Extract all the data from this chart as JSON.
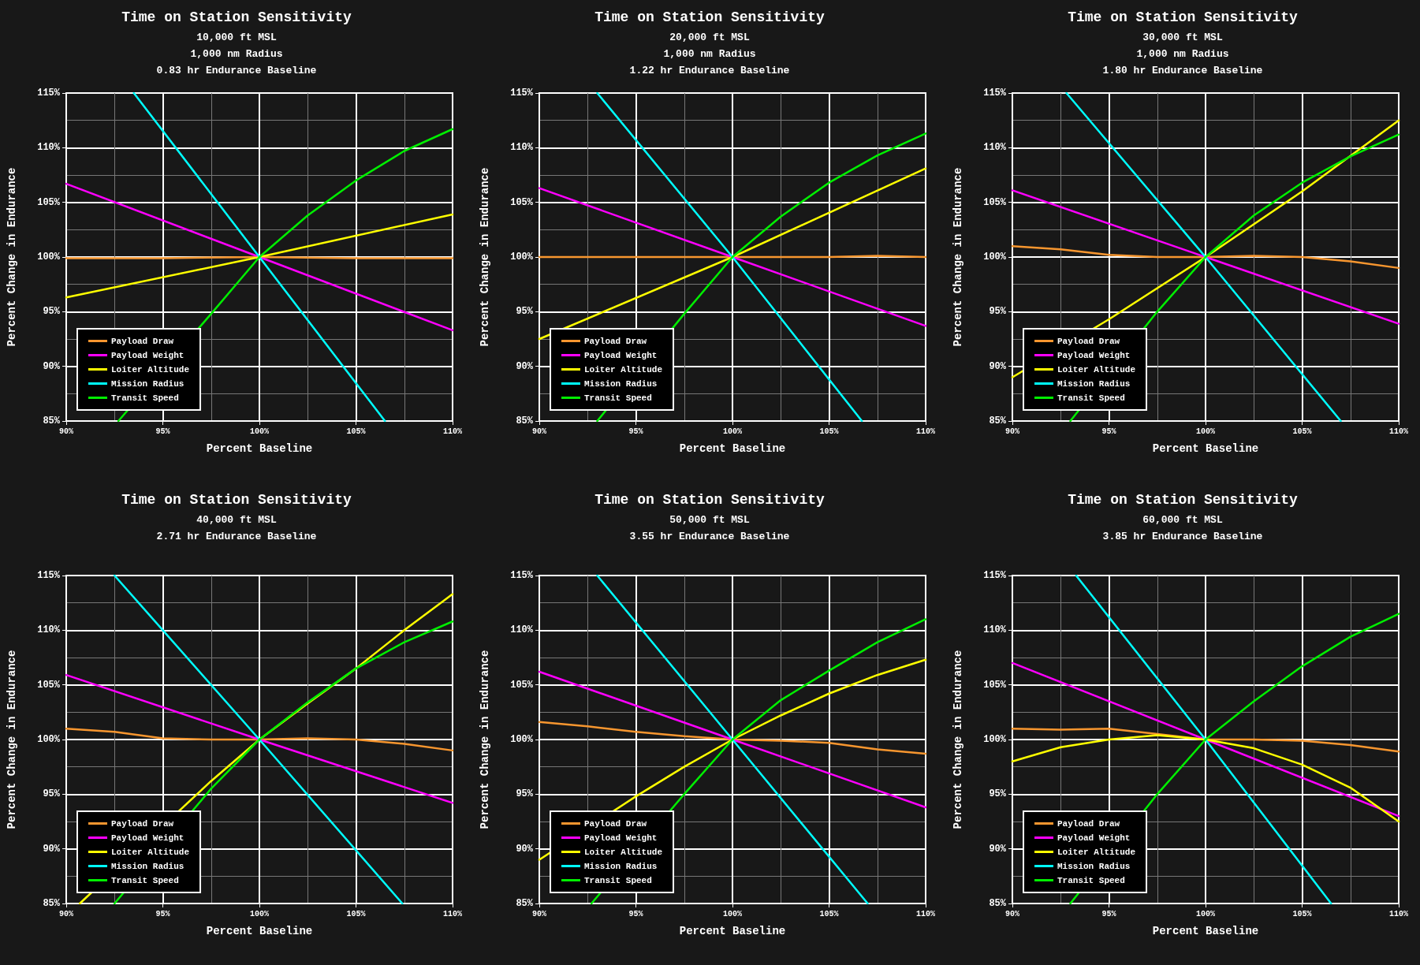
{
  "chart_data": [
    {
      "type": "line",
      "title": "Time on Station Sensitivity",
      "subtitle": "10,000 ft MSL\n1,000 nm Radius\n0.83 hr Endurance Baseline",
      "xlabel": "Percent Baseline",
      "ylabel": "Percent Change in Endurance",
      "xlim": [
        90,
        110
      ],
      "ylim": [
        85,
        115
      ],
      "xticks": [
        {
          "value": 90,
          "label": "90%"
        },
        {
          "value": 95,
          "label": "95%"
        },
        {
          "value": 100,
          "label": "100%"
        },
        {
          "value": 105,
          "label": "105%"
        },
        {
          "value": 110,
          "label": "110%"
        }
      ],
      "yticks": [
        {
          "value": 85,
          "label": "85%"
        },
        {
          "value": 90,
          "label": "90%"
        },
        {
          "value": 95,
          "label": "95%"
        },
        {
          "value": 100,
          "label": "100%"
        },
        {
          "value": 105,
          "label": "105%"
        },
        {
          "value": 110,
          "label": "110%"
        },
        {
          "value": 115,
          "label": "115%"
        }
      ],
      "grid": true,
      "legend": "bottom left",
      "marker": "none",
      "line_style": "solid",
      "series": [
        {
          "name": "Payload Draw",
          "color": "#f7962f",
          "x": [
            90,
            95,
            100,
            105,
            110
          ],
          "values": [
            99.9,
            99.9,
            100,
            99.9,
            99.9
          ]
        },
        {
          "name": "Payload Weight",
          "color": "#ff00ff",
          "x": [
            90,
            100,
            110
          ],
          "values": [
            106.7,
            100,
            93.3
          ]
        },
        {
          "name": "Loiter Altitude",
          "color": "#ffff00",
          "x": [
            90,
            100,
            110
          ],
          "values": [
            96.3,
            100,
            103.9
          ]
        },
        {
          "name": "Mission Radius",
          "color": "#00ffff",
          "x": [
            93.5,
            100,
            106.5
          ],
          "values": [
            115,
            100,
            85
          ]
        },
        {
          "name": "Transit Speed",
          "color": "#00ee00",
          "x": [
            92.7,
            97.5,
            100,
            102.5,
            105,
            107.5,
            110
          ],
          "values": [
            85,
            94.8,
            100,
            103.8,
            107,
            109.7,
            111.7
          ]
        }
      ]
    },
    {
      "type": "line",
      "title": "Time on Station Sensitivity",
      "subtitle": "20,000 ft MSL\n1,000 nm Radius\n1.22 hr Endurance Baseline",
      "xlabel": "Percent Baseline",
      "ylabel": "Percent Change in Endurance",
      "xlim": [
        90,
        110
      ],
      "ylim": [
        85,
        115
      ],
      "xticks": [
        {
          "value": 90,
          "label": "90%"
        },
        {
          "value": 95,
          "label": "95%"
        },
        {
          "value": 100,
          "label": "100%"
        },
        {
          "value": 105,
          "label": "105%"
        },
        {
          "value": 110,
          "label": "110%"
        }
      ],
      "yticks": [
        {
          "value": 85,
          "label": "85%"
        },
        {
          "value": 90,
          "label": "90%"
        },
        {
          "value": 95,
          "label": "95%"
        },
        {
          "value": 100,
          "label": "100%"
        },
        {
          "value": 105,
          "label": "105%"
        },
        {
          "value": 110,
          "label": "110%"
        },
        {
          "value": 115,
          "label": "115%"
        }
      ],
      "grid": true,
      "legend": "bottom left",
      "marker": "none",
      "line_style": "solid",
      "series": [
        {
          "name": "Payload Draw",
          "color": "#f7962f",
          "x": [
            90,
            95,
            100,
            105,
            107.5,
            110
          ],
          "values": [
            100,
            100,
            100,
            100,
            100.1,
            100
          ]
        },
        {
          "name": "Payload Weight",
          "color": "#ff00ff",
          "x": [
            90,
            100,
            110
          ],
          "values": [
            106.3,
            100,
            93.7
          ]
        },
        {
          "name": "Loiter Altitude",
          "color": "#ffff00",
          "x": [
            90,
            100,
            110
          ],
          "values": [
            92.5,
            100,
            108.1
          ]
        },
        {
          "name": "Mission Radius",
          "color": "#00ffff",
          "x": [
            93,
            100,
            106.7
          ],
          "values": [
            115,
            100,
            85
          ]
        },
        {
          "name": "Transit Speed",
          "color": "#00ee00",
          "x": [
            93,
            97.5,
            100,
            102.5,
            105,
            107.5,
            110
          ],
          "values": [
            85,
            94.8,
            100,
            103.7,
            106.8,
            109.3,
            111.3
          ]
        }
      ]
    },
    {
      "type": "line",
      "title": "Time on Station Sensitivity",
      "subtitle": "30,000 ft MSL\n1,000 nm Radius\n1.80 hr Endurance Baseline",
      "xlabel": "Percent Baseline",
      "ylabel": "Percent Change in Endurance",
      "xlim": [
        90,
        110
      ],
      "ylim": [
        85,
        115
      ],
      "xticks": [
        {
          "value": 90,
          "label": "90%"
        },
        {
          "value": 95,
          "label": "95%"
        },
        {
          "value": 100,
          "label": "100%"
        },
        {
          "value": 105,
          "label": "105%"
        },
        {
          "value": 110,
          "label": "110%"
        }
      ],
      "yticks": [
        {
          "value": 85,
          "label": "85%"
        },
        {
          "value": 90,
          "label": "90%"
        },
        {
          "value": 95,
          "label": "95%"
        },
        {
          "value": 100,
          "label": "100%"
        },
        {
          "value": 105,
          "label": "105%"
        },
        {
          "value": 110,
          "label": "110%"
        },
        {
          "value": 115,
          "label": "115%"
        }
      ],
      "grid": true,
      "legend": "bottom left",
      "marker": "none",
      "line_style": "solid",
      "series": [
        {
          "name": "Payload Draw",
          "color": "#f7962f",
          "x": [
            90,
            92.5,
            95,
            97.5,
            100,
            102.5,
            105,
            107.5,
            110
          ],
          "values": [
            101,
            100.7,
            100.2,
            100,
            100,
            100.1,
            100,
            99.6,
            99
          ]
        },
        {
          "name": "Payload Weight",
          "color": "#ff00ff",
          "x": [
            90,
            100,
            110
          ],
          "values": [
            106.1,
            100,
            93.9
          ]
        },
        {
          "name": "Loiter Altitude",
          "color": "#ffff00",
          "x": [
            90,
            95,
            100,
            105,
            110
          ],
          "values": [
            89,
            94.3,
            100,
            106,
            112.5
          ]
        },
        {
          "name": "Mission Radius",
          "color": "#00ffff",
          "x": [
            92.8,
            100,
            107
          ],
          "values": [
            115,
            100,
            85
          ]
        },
        {
          "name": "Transit Speed",
          "color": "#00ee00",
          "x": [
            93,
            97.5,
            100,
            102.5,
            105,
            107.5,
            110
          ],
          "values": [
            85,
            95,
            100,
            103.8,
            106.8,
            109.2,
            111.2
          ]
        }
      ]
    },
    {
      "type": "line",
      "title": "Time on Station Sensitivity",
      "subtitle": "40,000 ft MSL\n2.71 hr Endurance Baseline",
      "xlabel": "Percent Baseline",
      "ylabel": "Percent Change in Endurance",
      "xlim": [
        90,
        110
      ],
      "ylim": [
        85,
        115
      ],
      "xticks": [
        {
          "value": 90,
          "label": "90%"
        },
        {
          "value": 95,
          "label": "95%"
        },
        {
          "value": 100,
          "label": "100%"
        },
        {
          "value": 105,
          "label": "105%"
        },
        {
          "value": 110,
          "label": "110%"
        }
      ],
      "yticks": [
        {
          "value": 85,
          "label": "85%"
        },
        {
          "value": 90,
          "label": "90%"
        },
        {
          "value": 95,
          "label": "95%"
        },
        {
          "value": 100,
          "label": "100%"
        },
        {
          "value": 105,
          "label": "105%"
        },
        {
          "value": 110,
          "label": "110%"
        },
        {
          "value": 115,
          "label": "115%"
        }
      ],
      "grid": true,
      "legend": "bottom left",
      "marker": "none",
      "line_style": "solid",
      "series": [
        {
          "name": "Payload Draw",
          "color": "#f7962f",
          "x": [
            90,
            92.5,
            95,
            97.5,
            100,
            102.5,
            105,
            107.5,
            110
          ],
          "values": [
            101,
            100.7,
            100.1,
            100,
            100,
            100.1,
            100,
            99.6,
            99
          ]
        },
        {
          "name": "Payload Weight",
          "color": "#ff00ff",
          "x": [
            90,
            100,
            110
          ],
          "values": [
            105.9,
            100,
            94.2
          ]
        },
        {
          "name": "Loiter Altitude",
          "color": "#ffff00",
          "x": [
            90.7,
            97.5,
            100,
            102.5,
            105,
            107.5,
            110
          ],
          "values": [
            85,
            96.2,
            100,
            103.3,
            106.5,
            110,
            113.3
          ]
        },
        {
          "name": "Mission Radius",
          "color": "#00ffff",
          "x": [
            92.5,
            100,
            107.4
          ],
          "values": [
            115,
            100,
            85
          ]
        },
        {
          "name": "Transit Speed",
          "color": "#00ee00",
          "x": [
            92.5,
            97.5,
            100,
            102.5,
            105,
            107.5,
            110
          ],
          "values": [
            85,
            95.5,
            100,
            103.4,
            106.5,
            108.9,
            110.8
          ]
        }
      ]
    },
    {
      "type": "line",
      "title": "Time on Station Sensitivity",
      "subtitle": "50,000 ft MSL\n3.55 hr Endurance Baseline",
      "xlabel": "Percent Baseline",
      "ylabel": "Percent Change in Endurance",
      "xlim": [
        90,
        110
      ],
      "ylim": [
        85,
        115
      ],
      "xticks": [
        {
          "value": 90,
          "label": "90%"
        },
        {
          "value": 95,
          "label": "95%"
        },
        {
          "value": 100,
          "label": "100%"
        },
        {
          "value": 105,
          "label": "105%"
        },
        {
          "value": 110,
          "label": "110%"
        }
      ],
      "yticks": [
        {
          "value": 85,
          "label": "85%"
        },
        {
          "value": 90,
          "label": "90%"
        },
        {
          "value": 95,
          "label": "95%"
        },
        {
          "value": 100,
          "label": "100%"
        },
        {
          "value": 105,
          "label": "105%"
        },
        {
          "value": 110,
          "label": "110%"
        },
        {
          "value": 115,
          "label": "115%"
        }
      ],
      "grid": true,
      "legend": "bottom left",
      "marker": "none",
      "line_style": "solid",
      "series": [
        {
          "name": "Payload Draw",
          "color": "#f7962f",
          "x": [
            90,
            92.5,
            95,
            97.5,
            100,
            102.5,
            105,
            107.5,
            110
          ],
          "values": [
            101.6,
            101.2,
            100.7,
            100.3,
            100,
            99.9,
            99.7,
            99.1,
            98.7
          ]
        },
        {
          "name": "Payload Weight",
          "color": "#ff00ff",
          "x": [
            90,
            100,
            110
          ],
          "values": [
            106.2,
            100,
            93.8
          ]
        },
        {
          "name": "Loiter Altitude",
          "color": "#ffff00",
          "x": [
            90,
            95,
            97.5,
            100,
            102.5,
            105,
            107.5,
            110
          ],
          "values": [
            89,
            94.8,
            97.5,
            100,
            102.2,
            104.2,
            105.9,
            107.3
          ]
        },
        {
          "name": "Mission Radius",
          "color": "#00ffff",
          "x": [
            93,
            100,
            107
          ],
          "values": [
            115,
            100,
            85
          ]
        },
        {
          "name": "Transit Speed",
          "color": "#00ee00",
          "x": [
            92.7,
            97.5,
            100,
            102.5,
            105,
            107.5,
            110
          ],
          "values": [
            85,
            95,
            100,
            103.6,
            106.3,
            108.9,
            111
          ]
        }
      ]
    },
    {
      "type": "line",
      "title": "Time on Station Sensitivity",
      "subtitle": "60,000 ft MSL\n3.85 hr Endurance Baseline",
      "xlabel": "Percent Baseline",
      "ylabel": "Percent Change in Endurance",
      "xlim": [
        90,
        110
      ],
      "ylim": [
        85,
        115
      ],
      "xticks": [
        {
          "value": 90,
          "label": "90%"
        },
        {
          "value": 95,
          "label": "95%"
        },
        {
          "value": 100,
          "label": "100%"
        },
        {
          "value": 105,
          "label": "105%"
        },
        {
          "value": 110,
          "label": "110%"
        }
      ],
      "yticks": [
        {
          "value": 85,
          "label": "85%"
        },
        {
          "value": 90,
          "label": "90%"
        },
        {
          "value": 95,
          "label": "95%"
        },
        {
          "value": 100,
          "label": "100%"
        },
        {
          "value": 105,
          "label": "105%"
        },
        {
          "value": 110,
          "label": "110%"
        },
        {
          "value": 115,
          "label": "115%"
        }
      ],
      "grid": true,
      "legend": "bottom left",
      "marker": "none",
      "line_style": "solid",
      "series": [
        {
          "name": "Payload Draw",
          "color": "#f7962f",
          "x": [
            90,
            92.5,
            95,
            97.5,
            100,
            102.5,
            105,
            107.5,
            110
          ],
          "values": [
            101,
            100.9,
            101,
            100.5,
            100,
            100,
            99.9,
            99.5,
            98.9
          ]
        },
        {
          "name": "Payload Weight",
          "color": "#ff00ff",
          "x": [
            90,
            100,
            110
          ],
          "values": [
            107,
            100,
            93
          ]
        },
        {
          "name": "Loiter Altitude",
          "color": "#ffff00",
          "x": [
            90,
            92.5,
            95,
            97.5,
            100,
            102.5,
            105,
            107.5,
            110
          ],
          "values": [
            98,
            99.3,
            100,
            100.4,
            100,
            99.2,
            97.7,
            95.6,
            92.5
          ]
        },
        {
          "name": "Mission Radius",
          "color": "#00ffff",
          "x": [
            93.3,
            100,
            106.5
          ],
          "values": [
            115,
            100,
            85
          ]
        },
        {
          "name": "Transit Speed",
          "color": "#00ee00",
          "x": [
            93,
            97.5,
            100,
            102.5,
            105,
            107.5,
            110
          ],
          "values": [
            85,
            95,
            100,
            103.5,
            106.7,
            109.4,
            111.5
          ]
        }
      ]
    }
  ]
}
